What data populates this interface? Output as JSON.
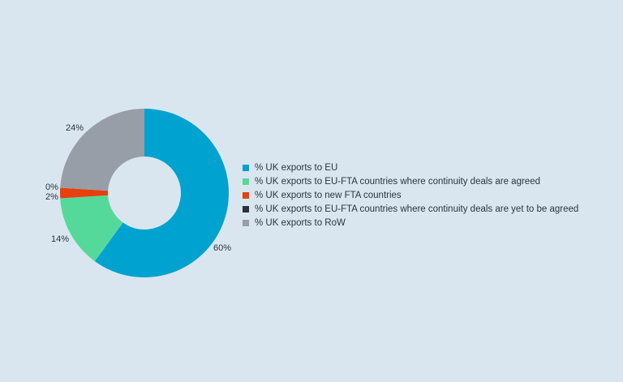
{
  "chart_data": {
    "type": "pie",
    "donut": true,
    "series": [
      {
        "name": "% UK exports to EU",
        "value": 60,
        "label": "60%",
        "color": "#00a3cf"
      },
      {
        "name": "% UK exports to EU-FTA countries where continuity deals are agreed",
        "value": 14,
        "label": "14%",
        "color": "#55d99b"
      },
      {
        "name": "% UK exports to new FTA countries",
        "value": 2,
        "label": "2%",
        "color": "#e8400c"
      },
      {
        "name": "% UK exports to EU-FTA countries where continuity deals are yet to be agreed",
        "value": 0,
        "label": "0%",
        "color": "#2a333d"
      },
      {
        "name": "% UK exports to RoW",
        "value": 24,
        "label": "24%",
        "color": "#979ea7"
      }
    ],
    "legend_position": "right"
  }
}
